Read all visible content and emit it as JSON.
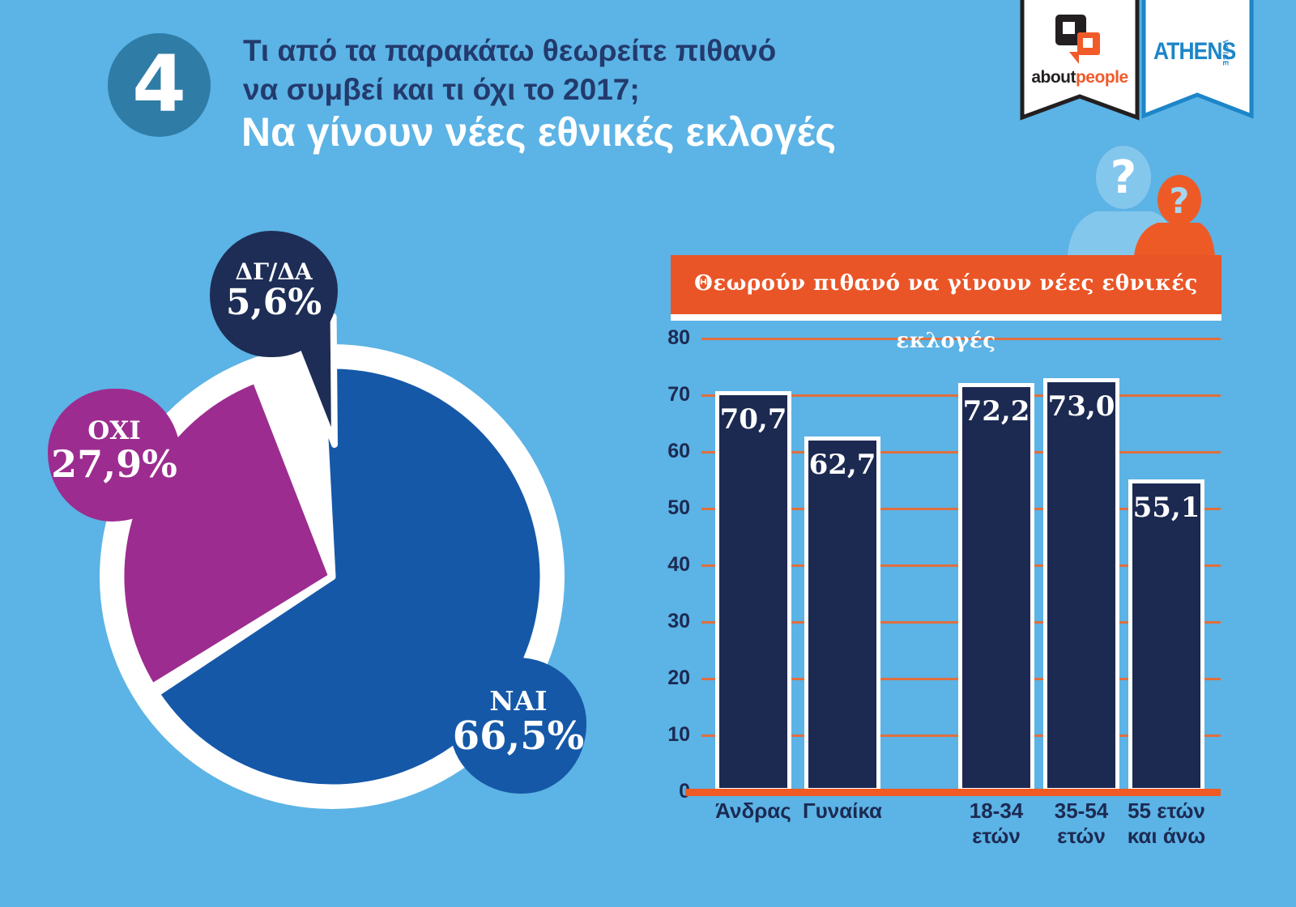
{
  "palette": {
    "background": "#5CB3E5",
    "navy": "#1C2A52",
    "title_navy": "#233A6D",
    "pie_blue": "#1558A8",
    "pie_purple": "#9C2C90",
    "pie_navy": "#1E2D56",
    "banner_orange": "#EA5527",
    "axis_orange": "#F15A22",
    "grid_orange": "#E06F3E",
    "badge_teal": "#2F7DA6",
    "athens_blue": "#1C86C8",
    "figure_blue": "#84C7ED",
    "figure_orange": "#EE5A26",
    "logo_black": "#231F20",
    "logo_orange": "#F15A29"
  },
  "header": {
    "badge_number": "4",
    "title_line1": "Τι από τα παρακάτω θεωρείτε πιθανό",
    "title_line2": "να συμβεί και τι όχι το 2017;",
    "subtitle": "Να γίνουν νέες εθνικές εκλογές"
  },
  "logos": {
    "aboutpeople": {
      "part1": "about",
      "part2": "people"
    },
    "athens": {
      "main": "ATHENS",
      "sub": "VOICE"
    }
  },
  "figures": {
    "question_mark": "?"
  },
  "chart_data": [
    {
      "type": "pie",
      "title": "",
      "slices": [
        {
          "label": "ΝΑΙ",
          "value": 66.5,
          "display": "66,5%",
          "color": "#1558A8",
          "exploded": false
        },
        {
          "label": "ΟΧΙ",
          "value": 27.9,
          "display": "27,9%",
          "color": "#9C2C90",
          "exploded": false
        },
        {
          "label": "ΔΓ/ΔΑ",
          "value": 5.6,
          "display": "5,6%",
          "color": "#1E2D56",
          "exploded": true
        }
      ]
    },
    {
      "type": "bar",
      "title": "Θεωρούν πιθανό να γίνουν νέες εθνικές εκλογές",
      "categories": [
        "Άνδρας",
        "Γυναίκα",
        "18-34 ετών",
        "35-54 ετών",
        "55 ετών και άνω"
      ],
      "category_lines": [
        [
          "Άνδρας"
        ],
        [
          "Γυναίκα"
        ],
        [
          "18-34",
          "ετών"
        ],
        [
          "35-54",
          "ετών"
        ],
        [
          "55 ετών",
          "και άνω"
        ]
      ],
      "values": [
        70.7,
        62.7,
        72.2,
        73.0,
        55.1
      ],
      "display_values": [
        "70,7",
        "62,7",
        "72,2",
        "73,0",
        "55,1"
      ],
      "ylim": [
        0,
        80
      ],
      "yticks": [
        0,
        10,
        20,
        30,
        40,
        50,
        60,
        70,
        80
      ],
      "grid": true,
      "bar_color": "#1C2A52",
      "legend_position": "none"
    }
  ]
}
